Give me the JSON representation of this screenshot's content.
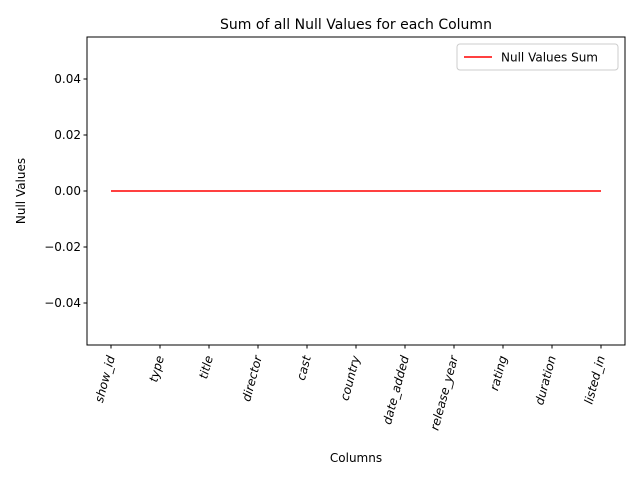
{
  "chart_data": {
    "type": "line",
    "title": "Sum of all Null Values for each Column",
    "xlabel": "Columns",
    "ylabel": "Null Values",
    "categories": [
      "show_id",
      "type",
      "title",
      "director",
      "cast",
      "country",
      "date_added",
      "release_year",
      "rating",
      "duration",
      "listed_in"
    ],
    "series": [
      {
        "name": "Null Values Sum",
        "values": [
          0,
          0,
          0,
          0,
          0,
          0,
          0,
          0,
          0,
          0,
          0
        ],
        "color": "#ff0000"
      }
    ],
    "ylim": [
      -0.055,
      0.055
    ],
    "yticks": [
      -0.04,
      -0.02,
      0.0,
      0.02,
      0.04
    ],
    "ytick_labels": [
      "−0.04",
      "−0.02",
      "0.00",
      "0.02",
      "0.04"
    ],
    "grid": false,
    "legend_position": "top-right"
  }
}
